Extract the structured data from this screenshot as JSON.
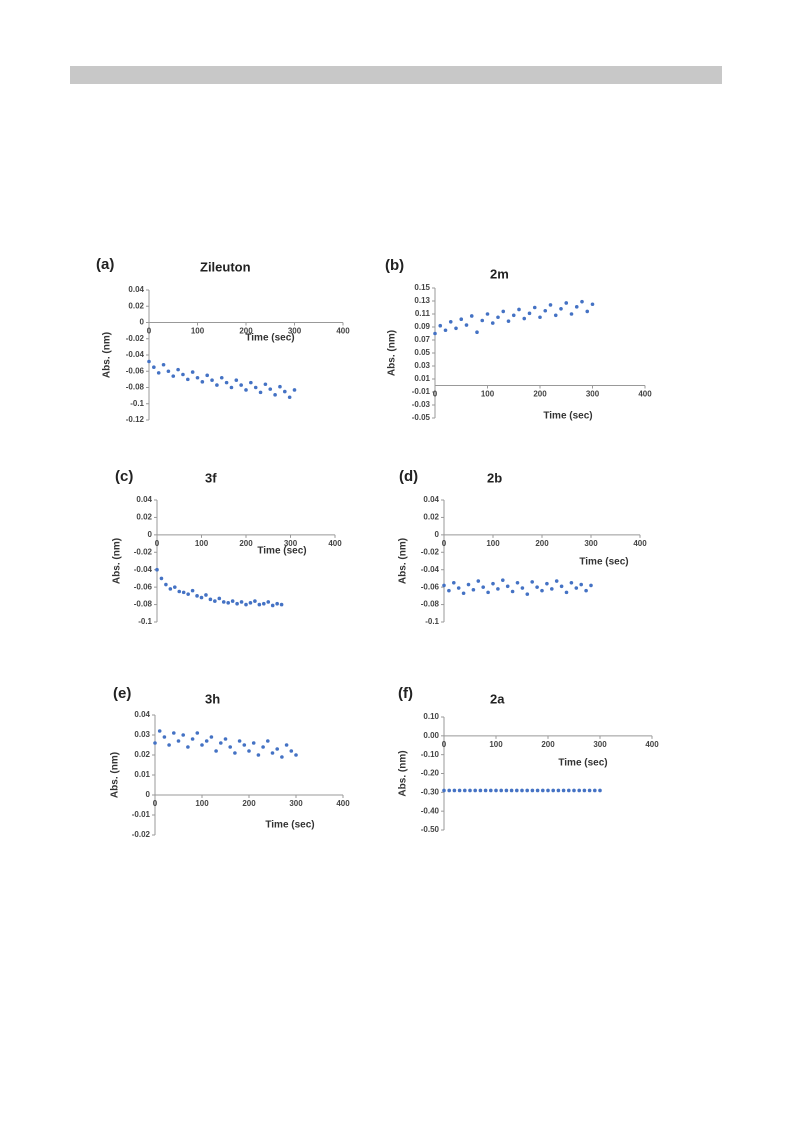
{
  "chart_data": [
    {
      "type": "scatter",
      "panel": "(a)",
      "title": "Zileuton",
      "x_label": "Time (sec)",
      "y_label": "Abs. (nm)",
      "color": "#4472c4",
      "xlim": [
        0,
        400
      ],
      "xticks": [
        0,
        100,
        200,
        300,
        400
      ],
      "ylim": [
        -0.12,
        0.04
      ],
      "yticks": [
        0.04,
        0.02,
        0,
        -0.02,
        -0.04,
        -0.06,
        -0.08,
        -0.1,
        -0.12
      ],
      "x": [
        0,
        10,
        20,
        30,
        40,
        50,
        60,
        70,
        80,
        90,
        100,
        110,
        120,
        130,
        140,
        150,
        160,
        170,
        180,
        190,
        200,
        210,
        220,
        230,
        240,
        250,
        260,
        270,
        280,
        290,
        300
      ],
      "values": [
        -0.048,
        -0.055,
        -0.062,
        -0.052,
        -0.06,
        -0.066,
        -0.058,
        -0.064,
        -0.07,
        -0.061,
        -0.068,
        -0.073,
        -0.065,
        -0.071,
        -0.077,
        -0.068,
        -0.074,
        -0.08,
        -0.071,
        -0.077,
        -0.083,
        -0.074,
        -0.08,
        -0.086,
        -0.076,
        -0.082,
        -0.089,
        -0.079,
        -0.085,
        -0.092,
        -0.083
      ]
    },
    {
      "type": "scatter",
      "panel": "(b)",
      "title": "2m",
      "x_label": "Time (sec)",
      "y_label": "Abs. (nm)",
      "color": "#4472c4",
      "xlim": [
        0,
        400
      ],
      "xticks": [
        0,
        100,
        200,
        300,
        400
      ],
      "ylim": [
        -0.05,
        0.15
      ],
      "yticks": [
        0.15,
        0.13,
        0.11,
        0.09,
        0.07,
        0.05,
        0.03,
        0.01,
        -0.01,
        -0.03,
        -0.05
      ],
      "x": [
        0,
        10,
        20,
        30,
        40,
        50,
        60,
        70,
        80,
        90,
        100,
        110,
        120,
        130,
        140,
        150,
        160,
        170,
        180,
        190,
        200,
        210,
        220,
        230,
        240,
        250,
        260,
        270,
        280,
        290,
        300
      ],
      "values": [
        0.08,
        0.092,
        0.085,
        0.098,
        0.088,
        0.102,
        0.093,
        0.107,
        0.082,
        0.1,
        0.11,
        0.096,
        0.105,
        0.114,
        0.099,
        0.108,
        0.117,
        0.103,
        0.111,
        0.12,
        0.105,
        0.115,
        0.124,
        0.108,
        0.118,
        0.127,
        0.11,
        0.121,
        0.129,
        0.114,
        0.125
      ]
    },
    {
      "type": "scatter",
      "panel": "(c)",
      "title": "3f",
      "x_label": "Time (sec)",
      "y_label": "Abs. (nm)",
      "color": "#4472c4",
      "xlim": [
        0,
        400
      ],
      "xticks": [
        0,
        100,
        200,
        300,
        400
      ],
      "ylim": [
        -0.1,
        0.04
      ],
      "yticks": [
        0.04,
        0.02,
        0,
        -0.02,
        -0.04,
        -0.06,
        -0.08,
        -0.1
      ],
      "x": [
        0,
        10,
        20,
        30,
        40,
        50,
        60,
        70,
        80,
        90,
        100,
        110,
        120,
        130,
        140,
        150,
        160,
        170,
        180,
        190,
        200,
        210,
        220,
        230,
        240,
        250,
        260,
        270,
        280
      ],
      "values": [
        -0.04,
        -0.05,
        -0.057,
        -0.062,
        -0.06,
        -0.065,
        -0.066,
        -0.068,
        -0.064,
        -0.07,
        -0.072,
        -0.069,
        -0.074,
        -0.076,
        -0.073,
        -0.077,
        -0.078,
        -0.076,
        -0.079,
        -0.077,
        -0.08,
        -0.078,
        -0.076,
        -0.08,
        -0.079,
        -0.077,
        -0.081,
        -0.079,
        -0.08
      ]
    },
    {
      "type": "scatter",
      "panel": "(d)",
      "title": "2b",
      "x_label": "Time (sec)",
      "y_label": "Abs. (nm)",
      "color": "#4472c4",
      "xlim": [
        0,
        400
      ],
      "xticks": [
        0,
        100,
        200,
        300,
        400
      ],
      "ylim": [
        -0.1,
        0.04
      ],
      "yticks": [
        0.04,
        0.02,
        0,
        -0.02,
        -0.04,
        -0.06,
        -0.08,
        -0.1
      ],
      "x": [
        0,
        10,
        20,
        30,
        40,
        50,
        60,
        70,
        80,
        90,
        100,
        110,
        120,
        130,
        140,
        150,
        160,
        170,
        180,
        190,
        200,
        210,
        220,
        230,
        240,
        250,
        260,
        270,
        280,
        290,
        300
      ],
      "values": [
        -0.058,
        -0.064,
        -0.055,
        -0.061,
        -0.067,
        -0.057,
        -0.063,
        -0.053,
        -0.06,
        -0.066,
        -0.056,
        -0.062,
        -0.052,
        -0.059,
        -0.065,
        -0.055,
        -0.061,
        -0.068,
        -0.054,
        -0.06,
        -0.064,
        -0.056,
        -0.062,
        -0.053,
        -0.059,
        -0.066,
        -0.055,
        -0.061,
        -0.057,
        -0.064,
        -0.058
      ]
    },
    {
      "type": "scatter",
      "panel": "(e)",
      "title": "3h",
      "x_label": "Time (sec)",
      "y_label": "Abs. (nm)",
      "color": "#4472c4",
      "xlim": [
        0,
        400
      ],
      "xticks": [
        0,
        100,
        200,
        300,
        400
      ],
      "ylim": [
        -0.02,
        0.04
      ],
      "yticks": [
        0.04,
        0.03,
        0.02,
        0.01,
        0,
        -0.01,
        -0.02
      ],
      "x": [
        0,
        10,
        20,
        30,
        40,
        50,
        60,
        70,
        80,
        90,
        100,
        110,
        120,
        130,
        140,
        150,
        160,
        170,
        180,
        190,
        200,
        210,
        220,
        230,
        240,
        250,
        260,
        270,
        280,
        290,
        300
      ],
      "values": [
        0.026,
        0.032,
        0.029,
        0.025,
        0.031,
        0.027,
        0.03,
        0.024,
        0.028,
        0.031,
        0.025,
        0.027,
        0.029,
        0.022,
        0.026,
        0.028,
        0.024,
        0.021,
        0.027,
        0.025,
        0.022,
        0.026,
        0.02,
        0.024,
        0.027,
        0.021,
        0.023,
        0.019,
        0.025,
        0.022,
        0.02
      ]
    },
    {
      "type": "scatter",
      "panel": "(f)",
      "title": "2a",
      "x_label": "Time (sec)",
      "y_label": "Abs. (nm)",
      "color": "#4472c4",
      "xlim": [
        0,
        400
      ],
      "xticks": [
        0,
        100,
        200,
        300,
        400
      ],
      "ylim": [
        -0.5,
        0.1
      ],
      "yticks": [
        {
          "value": 0.1,
          "label": "0.10"
        },
        {
          "value": 0,
          "label": "0.00"
        },
        {
          "value": -0.1,
          "label": "-0.10"
        },
        {
          "value": -0.2,
          "label": "-0.20"
        },
        {
          "value": -0.3,
          "label": "-0.30"
        },
        {
          "value": -0.4,
          "label": "-0.40"
        },
        {
          "value": -0.5,
          "label": "-0.50"
        }
      ],
      "x": [
        0,
        10,
        20,
        30,
        40,
        50,
        60,
        70,
        80,
        90,
        100,
        110,
        120,
        130,
        140,
        150,
        160,
        170,
        180,
        190,
        200,
        210,
        220,
        230,
        240,
        250,
        260,
        270,
        280,
        290,
        300
      ],
      "values": [
        -0.29,
        -0.29,
        -0.29,
        -0.29,
        -0.29,
        -0.29,
        -0.29,
        -0.29,
        -0.29,
        -0.29,
        -0.29,
        -0.29,
        -0.29,
        -0.29,
        -0.29,
        -0.29,
        -0.29,
        -0.29,
        -0.29,
        -0.29,
        -0.29,
        -0.29,
        -0.29,
        -0.29,
        -0.29,
        -0.29,
        -0.29,
        -0.29,
        -0.29,
        -0.29,
        -0.29
      ]
    }
  ]
}
